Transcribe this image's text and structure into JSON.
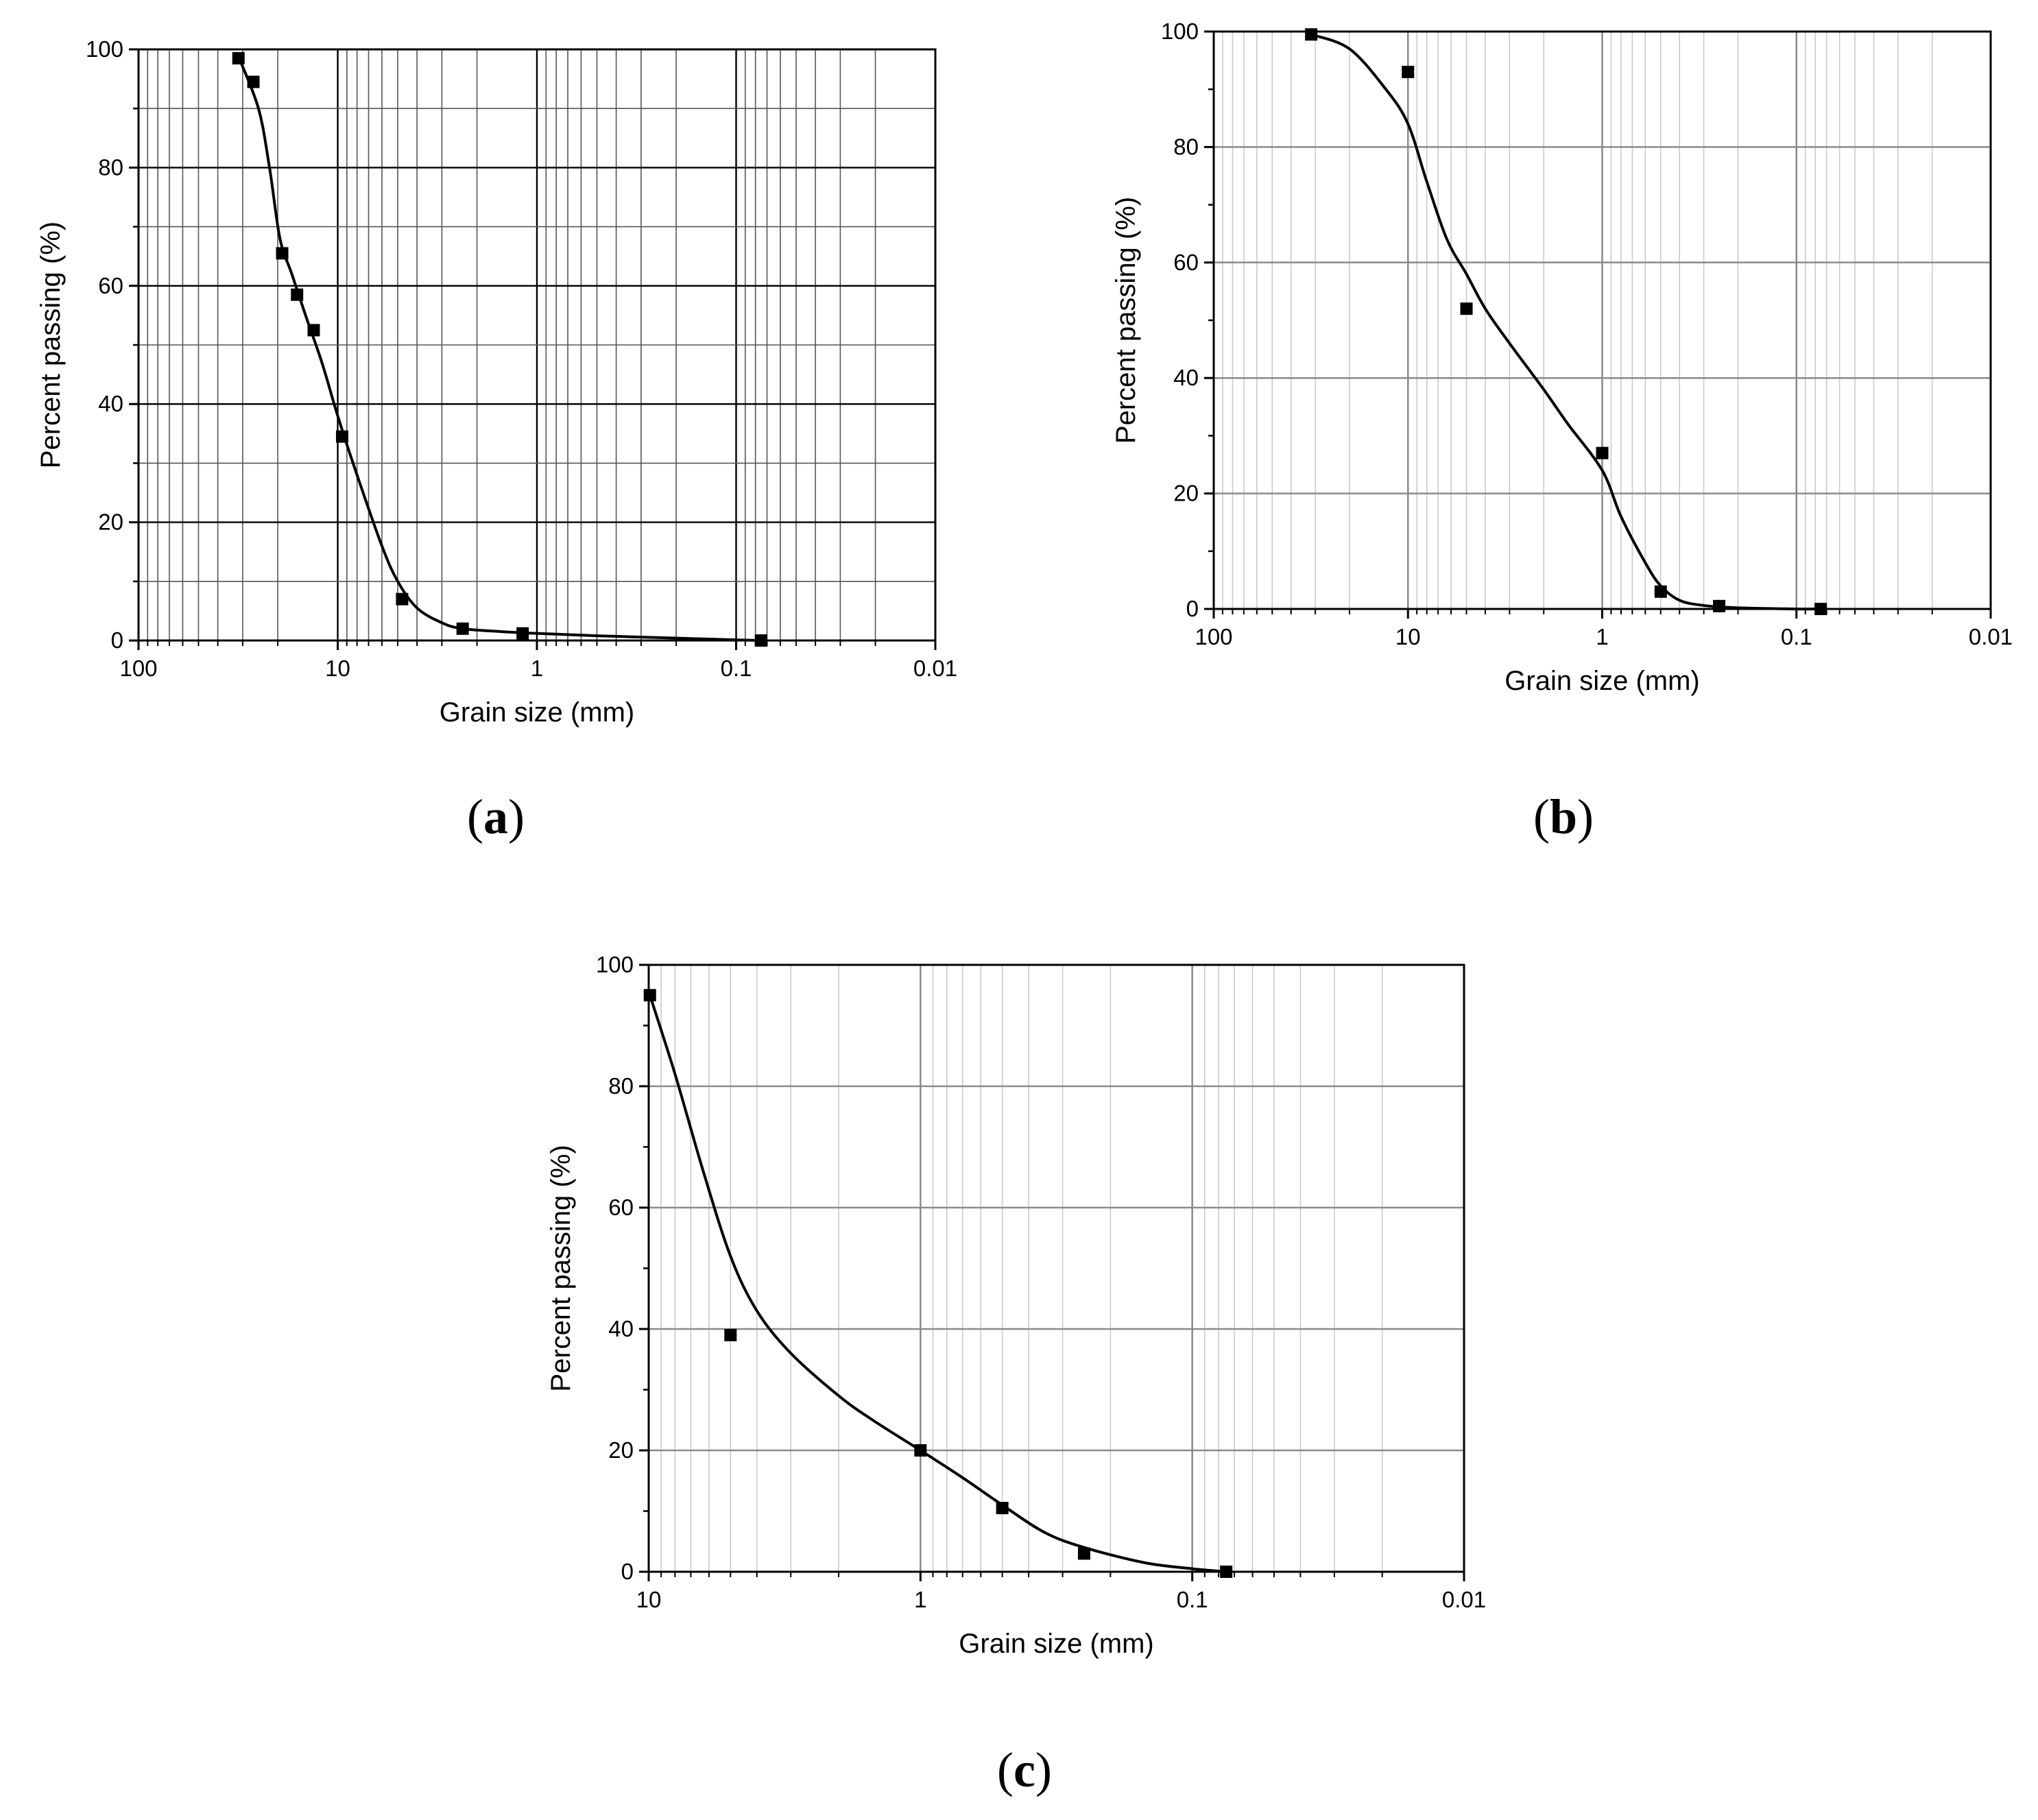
{
  "chart_data": [
    {
      "type": "scatter",
      "panel_label": "(a)",
      "panel_letter": "a",
      "xlabel": "Grain size (mm)",
      "ylabel": "Percent passing (%)",
      "x_scale": "log",
      "x_reversed": true,
      "xlim": [
        100,
        0.01
      ],
      "ylim": [
        0,
        100
      ],
      "x_ticks": [
        "100",
        "10",
        "1",
        "0.1",
        "0.01"
      ],
      "y_ticks": [
        "0",
        "20",
        "40",
        "60",
        "80",
        "100"
      ],
      "grid": true,
      "grid_style": "dark",
      "series": [
        {
          "points": [
            [
              31.5,
              98.5
            ],
            [
              26.5,
              94.5
            ],
            [
              19,
              65.5
            ],
            [
              16,
              58.5
            ],
            [
              13.2,
              52.5
            ],
            [
              9.5,
              34.5
            ],
            [
              4.75,
              7
            ],
            [
              2.36,
              2
            ],
            [
              1.18,
              1.2
            ],
            [
              0.075,
              0
            ]
          ],
          "curve": [
            [
              31.5,
              98.8
            ],
            [
              25,
              90
            ],
            [
              22,
              80
            ],
            [
              19.5,
              68
            ],
            [
              17,
              62
            ],
            [
              14.5,
              55
            ],
            [
              12,
              47
            ],
            [
              10,
              38
            ],
            [
              8,
              28
            ],
            [
              6,
              16
            ],
            [
              5,
              10
            ],
            [
              4,
              5.5
            ],
            [
              3,
              3
            ],
            [
              2.36,
              2
            ],
            [
              1.5,
              1.5
            ],
            [
              1,
              1.2
            ],
            [
              0.5,
              0.8
            ],
            [
              0.2,
              0.4
            ],
            [
              0.1,
              0.1
            ],
            [
              0.075,
              0
            ]
          ]
        }
      ]
    },
    {
      "type": "scatter",
      "panel_label": "(b)",
      "panel_letter": "b",
      "xlabel": "Grain size (mm)",
      "ylabel": "Percent passing (%)",
      "x_scale": "log",
      "x_reversed": true,
      "xlim": [
        100,
        0.01
      ],
      "ylim": [
        0,
        100
      ],
      "x_ticks": [
        "100",
        "10",
        "1",
        "0.1",
        "0.01"
      ],
      "y_ticks": [
        "0",
        "20",
        "40",
        "60",
        "80",
        "100"
      ],
      "grid": true,
      "grid_style": "light",
      "series": [
        {
          "points": [
            [
              31.5,
              99.5
            ],
            [
              10,
              93
            ],
            [
              5,
              52
            ],
            [
              1,
              27
            ],
            [
              0.5,
              3
            ],
            [
              0.25,
              0.5
            ],
            [
              0.075,
              0
            ]
          ],
          "curve": [
            [
              31.5,
              99.5
            ],
            [
              20,
              97
            ],
            [
              13,
              90
            ],
            [
              10,
              84
            ],
            [
              8,
              74
            ],
            [
              6.3,
              64
            ],
            [
              5,
              58
            ],
            [
              4,
              52
            ],
            [
              3,
              46
            ],
            [
              2,
              38
            ],
            [
              1.5,
              32
            ],
            [
              1,
              24
            ],
            [
              0.8,
              16
            ],
            [
              0.6,
              8
            ],
            [
              0.5,
              4
            ],
            [
              0.4,
              1.5
            ],
            [
              0.3,
              0.6
            ],
            [
              0.2,
              0.2
            ],
            [
              0.1,
              0
            ],
            [
              0.075,
              0
            ]
          ]
        }
      ]
    },
    {
      "type": "scatter",
      "panel_label": "(c)",
      "panel_letter": "c",
      "xlabel": "Grain size (mm)",
      "ylabel": "Percent passing (%)",
      "x_scale": "log",
      "x_reversed": true,
      "xlim": [
        10,
        0.01
      ],
      "ylim": [
        0,
        100
      ],
      "x_ticks": [
        "10",
        "1",
        "0.1",
        "0.01"
      ],
      "y_ticks": [
        "0",
        "20",
        "40",
        "60",
        "80",
        "100"
      ],
      "grid": true,
      "grid_style": "light",
      "series": [
        {
          "points": [
            [
              9.9,
              95
            ],
            [
              5,
              39
            ],
            [
              1,
              20
            ],
            [
              0.5,
              10.5
            ],
            [
              0.25,
              3
            ],
            [
              0.075,
              0
            ]
          ],
          "curve": [
            [
              9.9,
              95
            ],
            [
              8,
              82
            ],
            [
              6.3,
              66
            ],
            [
              5,
              52
            ],
            [
              4,
              43
            ],
            [
              3,
              36
            ],
            [
              2,
              29
            ],
            [
              1.5,
              25
            ],
            [
              1,
              20
            ],
            [
              0.7,
              15.5
            ],
            [
              0.5,
              11
            ],
            [
              0.35,
              6.5
            ],
            [
              0.25,
              4
            ],
            [
              0.15,
              1.5
            ],
            [
              0.1,
              0.5
            ],
            [
              0.075,
              0
            ]
          ]
        }
      ]
    }
  ]
}
